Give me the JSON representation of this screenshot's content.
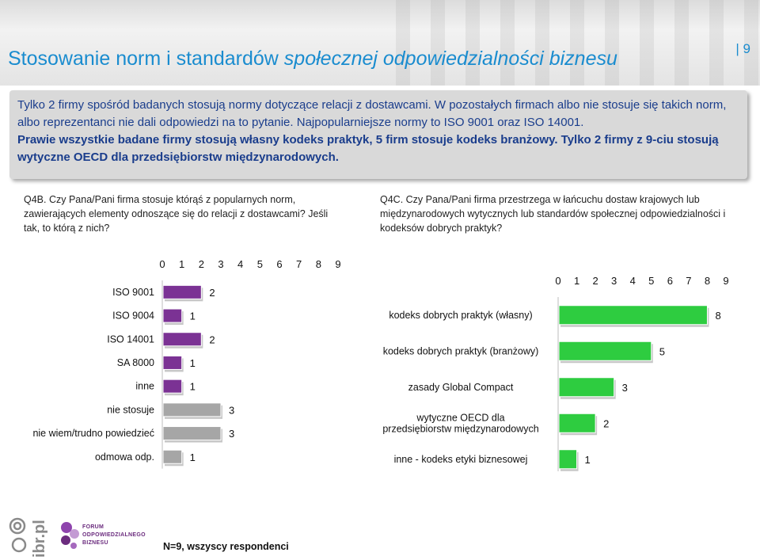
{
  "header": {
    "title_plain": "Stosowanie norm i standardów ",
    "title_italic": "społecznej odpowiedzialności biznesu",
    "page_number": "| 9"
  },
  "intro": {
    "line1": "Tylko 2 firmy spośród badanych stosują normy dotyczące relacji z dostawcami. W pozostałych firmach albo nie stosuje się takich norm, albo reprezentanci nie dali odpowiedzi na to pytanie. Najpopularniejsze normy to ISO 9001 oraz ISO 14001.",
    "line2": "Prawie wszystkie badane firmy stosują własny kodeks praktyk, 5 firm stosuje kodeks branżowy. Tylko 2 firmy z 9-ciu stosują wytyczne OECD dla przedsiębiorstw międzynarodowych."
  },
  "questions": {
    "left": "Q4B. Czy Pana/Pani firma stosuje którąś z popularnych norm, zawierających elementy odnoszące się do relacji z dostawcami? Jeśli tak, to którą z nich?",
    "right": "Q4C. Czy Pana/Pani firma przestrzega w łańcuchu dostaw krajowych lub międzynarodowych wytycznych lub standardów społecznej odpowiedzialności i kodeksów dobrych praktyk?"
  },
  "chart_data": [
    {
      "type": "bar",
      "orientation": "horizontal",
      "categories": [
        "ISO 9001",
        "ISO 9004",
        "ISO 14001",
        "SA 8000",
        "inne",
        "nie stosuje",
        "nie wiem/trudno powiedzieć",
        "odmowa odp."
      ],
      "values": [
        2,
        1,
        2,
        1,
        1,
        3,
        3,
        1
      ],
      "colors": [
        "#7b3294",
        "#7b3294",
        "#7b3294",
        "#7b3294",
        "#7b3294",
        "#a6a6a6",
        "#a6a6a6",
        "#a6a6a6"
      ],
      "xlim": [
        0,
        9
      ],
      "xticks": [
        0,
        1,
        2,
        3,
        4,
        5,
        6,
        7,
        8,
        9
      ],
      "axis_position": "top",
      "data_labels": true
    },
    {
      "type": "bar",
      "orientation": "horizontal",
      "categories": [
        "kodeks dobrych praktyk (własny)",
        "kodeks dobrych praktyk (branżowy)",
        "zasady Global Compact",
        "wytyczne OECD dla przedsiębiorstw międzynarodowych",
        "inne - kodeks etyki biznesowej"
      ],
      "values": [
        8,
        5,
        3,
        2,
        1
      ],
      "colors": [
        "#2ecc40",
        "#2ecc40",
        "#2ecc40",
        "#2ecc40",
        "#2ecc40"
      ],
      "xlim": [
        0,
        9
      ],
      "xticks": [
        0,
        1,
        2,
        3,
        4,
        5,
        6,
        7,
        8,
        9
      ],
      "axis_position": "top",
      "data_labels": true
    }
  ],
  "footer": {
    "note": "N=9, wszyscy respondenci",
    "logo_ibr_text": "ibr.pl",
    "logo_forum_lines": [
      "FORUM",
      "ODPOWIEDZIALNEGO",
      "BIZNESU"
    ]
  },
  "colors": {
    "title": "#1a8ccf",
    "intro_text": "#1a3d8c",
    "purple": "#7b3294",
    "gray": "#a6a6a6",
    "green": "#2ecc40"
  }
}
